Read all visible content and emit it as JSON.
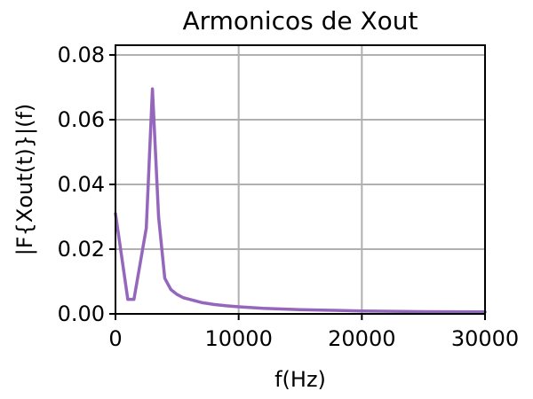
{
  "chart_data": {
    "type": "line",
    "title": "Armonicos de Xout",
    "xlabel": "f(Hz)",
    "ylabel": "|F{Xout(t)}|(f)",
    "xlim": [
      0,
      30000
    ],
    "ylim": [
      0,
      0.083
    ],
    "xticks": [
      0,
      10000,
      20000,
      30000
    ],
    "xtick_labels": [
      "0",
      "10000",
      "20000",
      "30000"
    ],
    "yticks": [
      0,
      0.02,
      0.04,
      0.06,
      0.08
    ],
    "ytick_labels": [
      "0.00",
      "0.02",
      "0.04",
      "0.06",
      "0.08"
    ],
    "grid": true,
    "series": [
      {
        "color": "#9467bd",
        "x": [
          0,
          1000,
          1500,
          2500,
          3000,
          3500,
          4000,
          4500,
          5000,
          5500,
          6000,
          7000,
          8000,
          9000,
          10000,
          12000,
          15000,
          20000,
          25000,
          30000
        ],
        "y": [
          0.031,
          0.0045,
          0.0045,
          0.0265,
          0.0695,
          0.03,
          0.011,
          0.0075,
          0.006,
          0.005,
          0.0045,
          0.0035,
          0.0029,
          0.0025,
          0.0022,
          0.0017,
          0.0013,
          0.0009,
          0.0007,
          0.0006
        ]
      }
    ]
  }
}
